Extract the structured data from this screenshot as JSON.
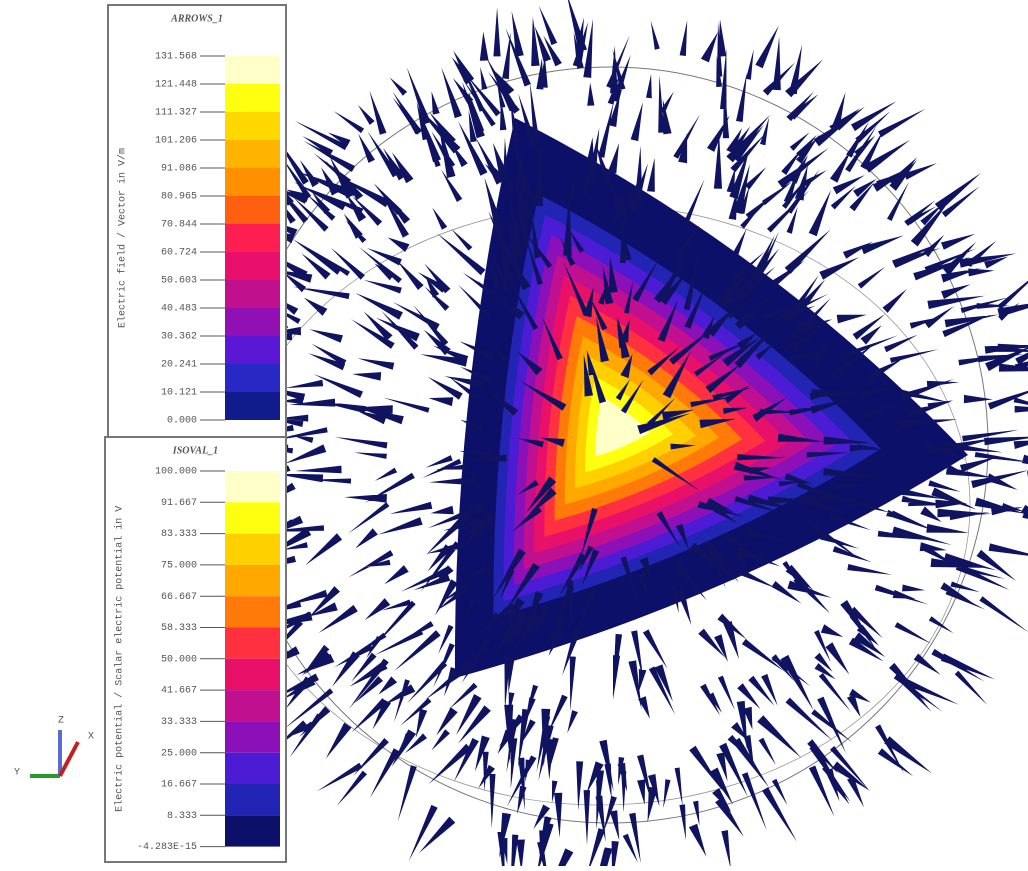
{
  "legends": [
    {
      "title": "ARROWS_1",
      "quantity": "Electric field / Vector in V/m",
      "ticks": [
        "131.568",
        "121.448",
        "111.327",
        "101.206",
        "91.086",
        "80.965",
        "70.844",
        "60.724",
        "50.603",
        "40.483",
        "30.362",
        "20.241",
        "10.121",
        "0.000"
      ],
      "colors": [
        "#ffffc8",
        "#ffff10",
        "#ffd800",
        "#ffb400",
        "#ff9000",
        "#ff6010",
        "#ff1e50",
        "#e8106c",
        "#c0108e",
        "#9010b4",
        "#5a18d4",
        "#2828c4",
        "#101c8c"
      ]
    },
    {
      "title": "ISOVAL_1",
      "quantity": "Electric potential / Scalar electric potential in V",
      "ticks": [
        "100.000",
        "91.667",
        "83.333",
        "75.000",
        "66.667",
        "58.333",
        "50.000",
        "41.667",
        "33.333",
        "25.000",
        "16.667",
        "8.333",
        "-4.283E-15"
      ],
      "colors": [
        "#ffffc8",
        "#ffff10",
        "#ffd000",
        "#ffa800",
        "#ff7a08",
        "#ff3040",
        "#e81068",
        "#c01090",
        "#8c10b8",
        "#4c1cd4",
        "#2224b4",
        "#0c1068"
      ]
    }
  ],
  "triad": {
    "z": "Z",
    "x": "X",
    "y": "Y"
  }
}
